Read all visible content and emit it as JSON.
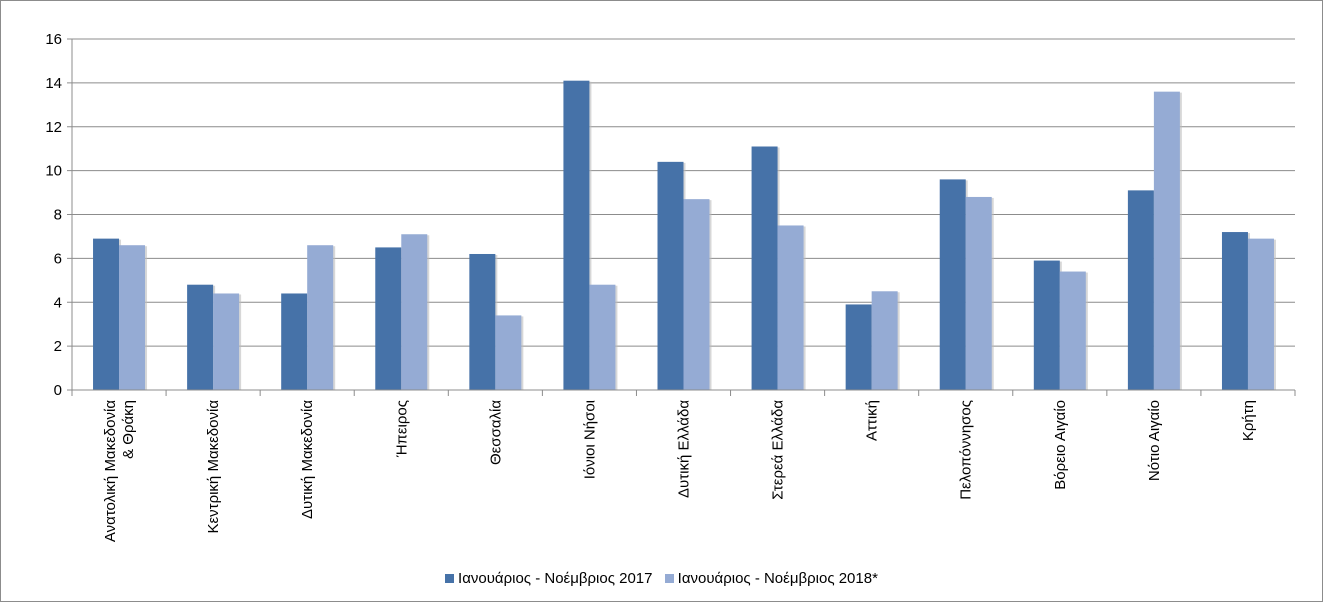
{
  "chart_data": {
    "type": "bar",
    "categories": [
      [
        "Ανατολική Μακεδονία",
        "& Θράκη"
      ],
      [
        "Κεντρική Μακεδονία"
      ],
      [
        "Δυτική Μακεδονία"
      ],
      [
        "Ήπειρος"
      ],
      [
        "Θεσσαλία"
      ],
      [
        "Ιόνιοι Νήσοι"
      ],
      [
        "Δυτική Ελλάδα"
      ],
      [
        "Στερεά Ελλάδα"
      ],
      [
        "Αττική"
      ],
      [
        "Πελοπόννησος"
      ],
      [
        "Βόρειο Αιγαίο"
      ],
      [
        "Νότιο Αιγαίο"
      ],
      [
        "Κρήτη"
      ]
    ],
    "series": [
      {
        "name": "Ιανουάριος - Νοέμβριος 2017",
        "color": "#4672a8",
        "values": [
          6.9,
          4.8,
          4.4,
          6.5,
          6.2,
          14.1,
          10.4,
          11.1,
          3.9,
          9.6,
          5.9,
          9.1,
          7.2
        ]
      },
      {
        "name": "Ιανουάριος - Νοέμβριος 2018*",
        "color": "#95abd4",
        "values": [
          6.6,
          4.4,
          6.6,
          7.1,
          3.4,
          4.8,
          8.7,
          7.5,
          4.5,
          8.8,
          5.4,
          13.6,
          6.9
        ]
      }
    ],
    "ylim": [
      0,
      16
    ],
    "yticks": [
      0,
      2,
      4,
      6,
      8,
      10,
      12,
      14,
      16
    ],
    "grid": true,
    "legend_position": "bottom"
  }
}
